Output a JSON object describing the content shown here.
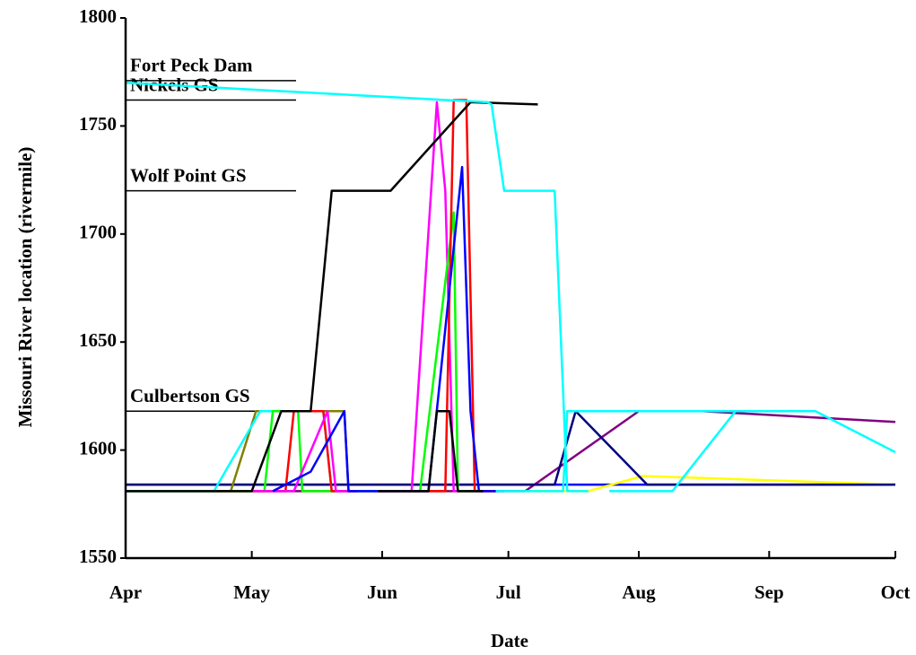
{
  "chart_data": {
    "type": "line",
    "xlabel": "Date",
    "ylabel": "Missouri River location (rivermile)",
    "xlim": [
      0,
      183
    ],
    "xticks": [
      {
        "value": 0,
        "label": "Apr"
      },
      {
        "value": 30,
        "label": "May"
      },
      {
        "value": 61,
        "label": "Jun"
      },
      {
        "value": 91,
        "label": "Jul"
      },
      {
        "value": 122,
        "label": "Aug"
      },
      {
        "value": 153,
        "label": "Sep"
      },
      {
        "value": 183,
        "label": "Oct"
      }
    ],
    "ylim": [
      1550,
      1800
    ],
    "yticks": [
      1550,
      1600,
      1650,
      1700,
      1750,
      1800
    ],
    "annotations": [
      {
        "text": "Fort Peck Dam",
        "value": 1771
      },
      {
        "text": "Nickels GS",
        "value": 1762
      },
      {
        "text": "Wolf Point GS",
        "value": 1720
      },
      {
        "text": "Culbertson GS",
        "value": 1618
      }
    ],
    "series": [
      {
        "color": "#0000ff",
        "x": [
          0,
          183
        ],
        "values": [
          1584,
          1584
        ]
      },
      {
        "color": "#ffff00",
        "x": [
          0,
          110,
          123,
          183
        ],
        "values": [
          1581,
          1581,
          1588,
          1584
        ]
      },
      {
        "color": "#800080",
        "x": [
          0,
          95,
          122,
          137,
          183
        ],
        "values": [
          1581,
          1581,
          1618,
          1618,
          1613
        ]
      },
      {
        "color": "#000080",
        "x": [
          0,
          102,
          107,
          124,
          183
        ],
        "values": [
          1584,
          1584,
          1618,
          1584,
          1584
        ]
      },
      {
        "color": "#808000",
        "x": [
          0,
          25,
          31,
          52,
          53,
          60
        ],
        "values": [
          1581,
          1581,
          1618,
          1618,
          1581,
          1581
        ]
      },
      {
        "color": "#00ffff",
        "x": [
          0,
          21,
          32,
          47,
          49,
          60
        ],
        "values": [
          1581,
          1581,
          1618,
          1618,
          1581,
          1581
        ]
      },
      {
        "color": "#00ff00",
        "x": [
          25,
          33,
          35,
          41,
          42,
          50
        ],
        "values": [
          1581,
          1581,
          1618,
          1618,
          1581,
          1581
        ]
      },
      {
        "color": "#ff0000",
        "x": [
          30,
          38,
          40,
          47,
          49,
          55
        ],
        "values": [
          1581,
          1581,
          1618,
          1618,
          1581,
          1581
        ]
      },
      {
        "color": "#ff00ff",
        "x": [
          30,
          40,
          48,
          50,
          55
        ],
        "values": [
          1581,
          1581,
          1618,
          1581,
          1581
        ]
      },
      {
        "color": "#0000ff",
        "x": [
          35,
          44,
          52,
          53,
          60
        ],
        "values": [
          1581,
          1590,
          1618,
          1581,
          1581
        ]
      },
      {
        "color": "#ff00ff",
        "x": [
          60,
          68,
          74,
          76,
          78,
          85
        ],
        "values": [
          1581,
          1581,
          1761,
          1720,
          1581,
          1581
        ]
      },
      {
        "color": "#00ff00",
        "x": [
          60,
          70,
          78,
          79,
          85
        ],
        "values": [
          1581,
          1581,
          1710,
          1581,
          1581
        ]
      },
      {
        "color": "#ff0000",
        "x": [
          60,
          76,
          78,
          81,
          83,
          88
        ],
        "values": [
          1581,
          1581,
          1762,
          1762,
          1581,
          1581
        ]
      },
      {
        "color": "#0000ff",
        "x": [
          60,
          72,
          80,
          82,
          84,
          90
        ],
        "values": [
          1581,
          1581,
          1731,
          1618,
          1581,
          1581
        ]
      },
      {
        "color": "#000000",
        "x": [
          60,
          72,
          74,
          77,
          79,
          85
        ],
        "values": [
          1581,
          1581,
          1618,
          1618,
          1581,
          1581
        ]
      },
      {
        "color": "#000000",
        "x": [
          0,
          30,
          37,
          44,
          49,
          63,
          82,
          98
        ],
        "values": [
          1581,
          1581,
          1618,
          1618,
          1720,
          1720,
          1761,
          1760
        ]
      },
      {
        "color": "#00ffff",
        "x": [
          0,
          86,
          87,
          90,
          102,
          105,
          110
        ],
        "values": [
          1770,
          1761,
          1760,
          1720,
          1720,
          1581,
          1581
        ]
      },
      {
        "color": "#00ffff",
        "x": [
          88,
          100,
          104,
          105,
          164,
          183
        ],
        "values": [
          1581,
          1581,
          1581,
          1618,
          1618,
          1599
        ]
      },
      {
        "color": "#00ffff",
        "x": [
          115,
          130,
          145,
          164
        ],
        "values": [
          1581,
          1581,
          1618,
          1618
        ]
      }
    ]
  }
}
